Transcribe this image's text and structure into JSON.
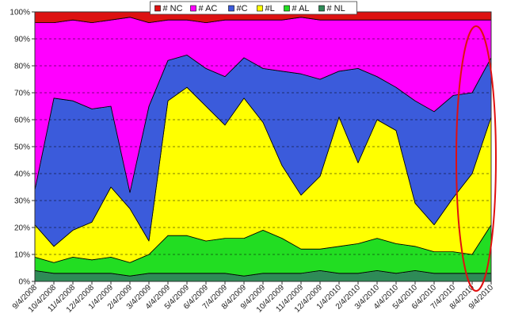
{
  "chart_data": {
    "type": "area",
    "stacked": true,
    "normalized": true,
    "title": "",
    "xlabel": "",
    "ylabel": "",
    "ylim": [
      0,
      100
    ],
    "y_ticks": [
      "0%",
      "10%",
      "20%",
      "30%",
      "40%",
      "50%",
      "60%",
      "70%",
      "80%",
      "90%",
      "100%"
    ],
    "x_ticks": [
      "9/4/2008",
      "10/4/2008",
      "11/4/2008",
      "12/4/2008",
      "1/4/2009",
      "2/4/2009",
      "3/4/2009",
      "4/4/2009",
      "5/4/2009",
      "6/4/2009",
      "7/4/2009",
      "8/4/2009",
      "9/4/2009",
      "10/4/2009",
      "11/4/2009",
      "12/4/2009",
      "1/4/2010",
      "2/4/2010",
      "3/4/2010",
      "4/4/2010",
      "5/4/2010",
      "6/4/2010",
      "7/4/2010",
      "8/4/2010",
      "9/4/2010"
    ],
    "grid": true,
    "legend_position": "top",
    "annotation": "red ellipse highlighting the most recent period (Aug–Sep 2010)",
    "series": [
      {
        "name": "# NL",
        "color": "#2e8b57",
        "values": [
          4,
          3,
          3,
          3,
          3,
          2,
          3,
          3,
          3,
          3,
          3,
          2,
          3,
          3,
          3,
          4,
          3,
          3,
          4,
          3,
          4,
          3,
          3,
          3,
          3
        ]
      },
      {
        "name": "# AL",
        "color": "#22dd22",
        "values": [
          5,
          4,
          6,
          5,
          6,
          5,
          7,
          14,
          14,
          12,
          13,
          14,
          16,
          13,
          9,
          8,
          10,
          11,
          12,
          11,
          9,
          8,
          8,
          7,
          18
        ]
      },
      {
        "name": "#L",
        "color": "#ffff00",
        "values": [
          12,
          6,
          10,
          14,
          26,
          20,
          5,
          50,
          55,
          50,
          42,
          52,
          40,
          27,
          20,
          27,
          48,
          30,
          44,
          42,
          16,
          10,
          20,
          30,
          40
        ]
      },
      {
        "name": "#C",
        "color": "#3b5bdb",
        "values": [
          13,
          55,
          48,
          42,
          30,
          6,
          50,
          15,
          12,
          14,
          18,
          15,
          20,
          35,
          45,
          36,
          17,
          35,
          16,
          16,
          38,
          42,
          38,
          30,
          22
        ]
      },
      {
        "name": "# AC",
        "color": "#ff00ff",
        "values": [
          62,
          28,
          30,
          32,
          32,
          65,
          31,
          15,
          13,
          17,
          21,
          14,
          18,
          19,
          21,
          22,
          19,
          18,
          21,
          25,
          30,
          34,
          28,
          27,
          14
        ]
      },
      {
        "name": "# NC",
        "color": "#dd1111",
        "values": [
          4,
          4,
          3,
          4,
          3,
          2,
          4,
          3,
          3,
          4,
          3,
          3,
          3,
          3,
          2,
          3,
          3,
          3,
          3,
          3,
          3,
          3,
          3,
          3,
          3
        ]
      }
    ]
  }
}
